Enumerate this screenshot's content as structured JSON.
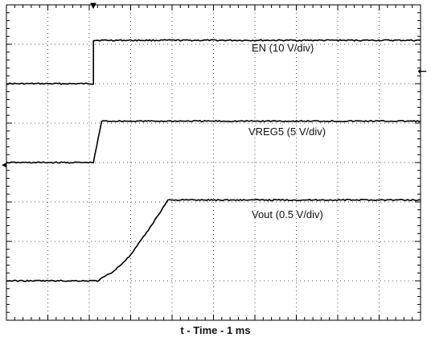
{
  "chart_data": {
    "type": "line",
    "xlabel": "t - Time - 1 ms",
    "xlim": [
      0,
      10
    ],
    "ylim": [
      0,
      8
    ],
    "grid": true,
    "series": [
      {
        "name": "EN (10 V/div)",
        "x": [
          0,
          2.1,
          2.1,
          10
        ],
        "y": [
          6.0,
          6.0,
          7.1,
          7.1
        ]
      },
      {
        "name": "VREG5 (5 V/div)",
        "x": [
          0,
          2.1,
          2.3,
          10
        ],
        "y": [
          4.0,
          4.0,
          5.05,
          5.05
        ]
      },
      {
        "name": "Vout (0.5 V/div)",
        "x": [
          0,
          2.2,
          2.6,
          3.0,
          3.5,
          3.9,
          10
        ],
        "y": [
          1.0,
          1.0,
          1.25,
          1.65,
          2.4,
          3.05,
          3.05
        ]
      }
    ],
    "trace_colors": [
      "#000000",
      "#000000",
      "#000000"
    ],
    "markers": {
      "trigger_top": "▼",
      "level_right": "←",
      "ground_left": "◂"
    }
  }
}
